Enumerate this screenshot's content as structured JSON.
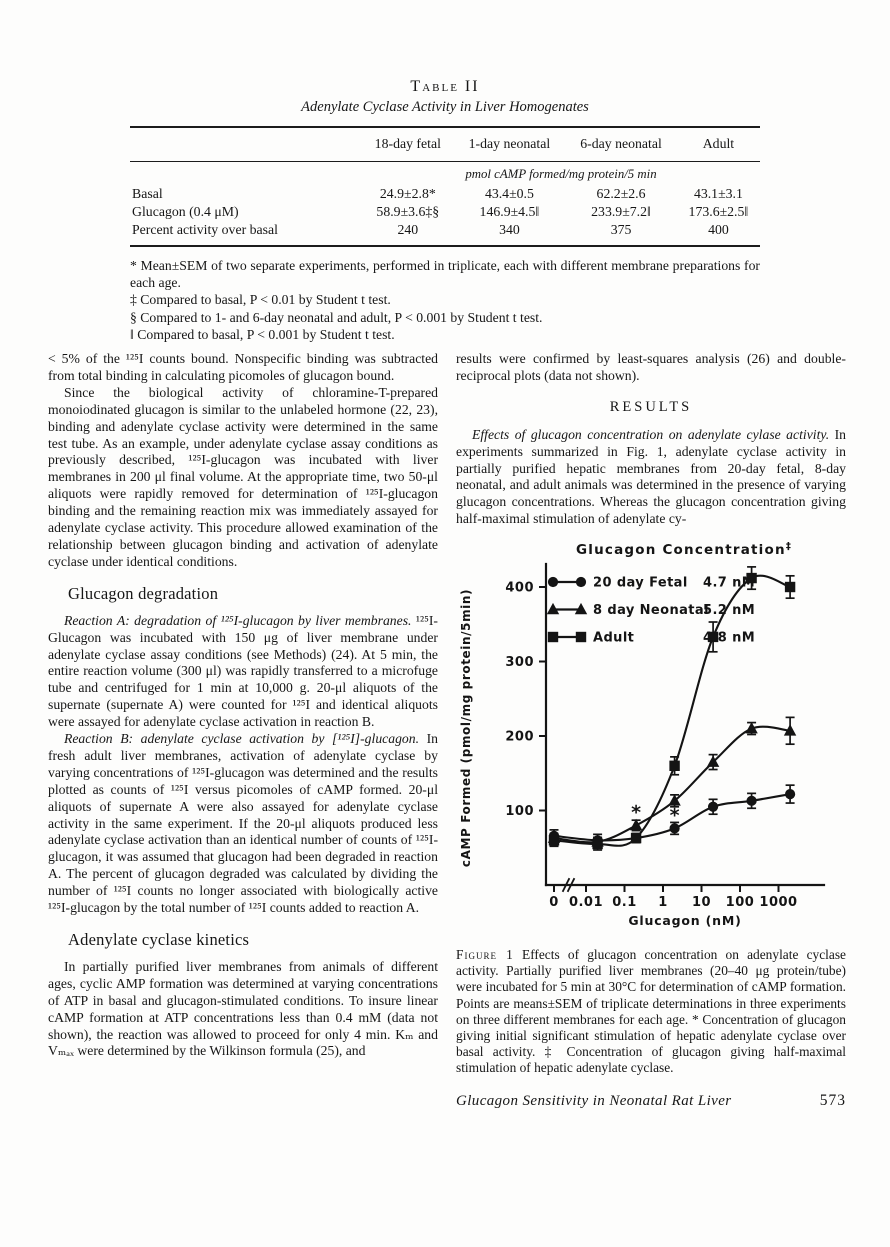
{
  "table": {
    "label": "Table II",
    "subtitle": "Adenylate Cyclase Activity in Liver Homogenates",
    "columns": [
      "",
      "18-day fetal",
      "1-day neonatal",
      "6-day neonatal",
      "Adult"
    ],
    "units_note": "pmol cAMP formed/mg protein/5 min",
    "rows": [
      {
        "label": "Basal",
        "values": [
          "24.9±2.8*",
          "43.4±0.5",
          "62.2±2.6",
          "43.1±3.1"
        ]
      },
      {
        "label": "Glucagon (0.4 μM)",
        "values": [
          "58.9±3.6‡§",
          "146.9±4.5‖",
          "233.9±7.2‖",
          "173.6±2.5‖"
        ]
      },
      {
        "label": "Percent activity over basal",
        "values": [
          "240",
          "340",
          "375",
          "400"
        ]
      }
    ],
    "footnotes": [
      "* Mean±SEM of two separate experiments, performed in triplicate, each with different membrane preparations for each age.",
      "‡ Compared to basal, P < 0.01 by Student t test.",
      "§ Compared to 1- and 6-day neonatal and adult, P < 0.001 by Student t test.",
      "‖ Compared to basal, P < 0.001 by Student t test."
    ]
  },
  "left_column": {
    "p1": "< 5% of the ¹²⁵I counts bound. Nonspecific binding was subtracted from total binding in calculating picomoles of glucagon bound.",
    "p2": "Since the biological activity of chloramine-T-prepared monoiodinated glucagon is similar to the unlabeled hormone (22, 23), binding and adenylate cyclase activity were determined in the same test tube. As an example, under adenylate cyclase assay conditions as previously described, ¹²⁵I-glucagon was incubated with liver membranes in 200 μl final volume. At the appropriate time, two 50-μl aliquots were rapidly removed for determination of ¹²⁵I-glucagon binding and the remaining reaction mix was immediately assayed for adenylate cyclase activity. This procedure allowed examination of the relationship between glucagon binding and activation of adenylate cyclase under identical conditions.",
    "h1": "Glucagon degradation",
    "p3_lead": "Reaction A: degradation of ¹²⁵I-glucagon by liver membranes.",
    "p3_text": " ¹²⁵I-Glucagon was incubated with 150 μg of liver membrane under adenylate cyclase assay conditions (see Methods) (24). At 5 min, the entire reaction volume (300 μl) was rapidly transferred to a microfuge tube and centrifuged for 1 min at 10,000 g. 20-μl aliquots of the supernate (supernate A) were counted for ¹²⁵I and identical aliquots were assayed for adenylate cyclase activation in reaction B.",
    "p4_lead": "Reaction B: adenylate cyclase activation by [¹²⁵I]-glucagon.",
    "p4_text": " In fresh adult liver membranes, activation of adenylate cyclase by varying concentrations of ¹²⁵I-glucagon was determined and the results plotted as counts of ¹²⁵I versus picomoles of cAMP formed. 20-μl aliquots of supernate A were also assayed for adenylate cyclase activity in the same experiment. If the 20-μl aliquots produced less adenylate cyclase activation than an identical number of counts of ¹²⁵I-glucagon, it was assumed that glucagon had been degraded in reaction A. The percent of glucagon degraded was calculated by dividing the number of ¹²⁵I counts no longer associated with biologically active ¹²⁵I-glucagon by the total number of ¹²⁵I counts added to reaction A.",
    "h2": "Adenylate cyclase kinetics",
    "p5": "In partially purified liver membranes from animals of different ages, cyclic AMP formation was determined at varying concentrations of ATP in basal and glucagon-stimulated conditions. To insure linear cAMP formation at ATP concentrations less than 0.4 mM (data not shown), the reaction was allowed to proceed for only 4 min. Kₘ and Vₘₐₓ were determined by the Wilkinson formula (25), and"
  },
  "right_column": {
    "p1": "results were confirmed by least-squares analysis (26) and double-reciprocal plots (data not shown).",
    "results_heading": "RESULTS",
    "p2_lead": "Effects of glucagon concentration on adenylate cylase activity.",
    "p2_text": " In experiments summarized in Fig. 1, adenylate cyclase activity in partially purified hepatic membranes from 20-day fetal, 8-day neonatal, and adult animals was determined in the presence of varying glucagon concentrations. Whereas the glucagon concentration giving half-maximal stimulation of adenylate cy-",
    "caption_label": "Figure 1",
    "caption_text": "  Effects of glucagon concentration on adenylate cyclase activity. Partially purified liver membranes (20–40 μg protein/tube) were incubated for 5 min at 30°C for determination of cAMP formation. Points are means±SEM of triplicate determinations in three experiments on three different membranes for each age. * Concentration of glucagon giving initial significant stimulation of hepatic adenylate cyclase over basal activity. ‡ Concentration of glucagon giving half-maximal stimulation of hepatic adenylate cyclase.",
    "footer_title": "Glucagon Sensitivity in Neonatal Rat Liver",
    "footer_page": "573"
  },
  "chart_data": {
    "type": "line",
    "title": "Glucagon Concentration",
    "title_mark": "‡",
    "xlabel": "Glucagon (nM)",
    "ylabel": "cAMP Formed  (pmol/mg protein/5min)",
    "x_scale": "log with zero break",
    "x_ticks": [
      "0",
      "0.01",
      "0.1",
      "1",
      "10",
      "100",
      "1000"
    ],
    "y_ticks": [
      100,
      200,
      300,
      400
    ],
    "ylim": [
      0,
      430
    ],
    "x": [
      0,
      0.02,
      0.2,
      2,
      20,
      200,
      2000
    ],
    "series": [
      {
        "name": "20 day Fetal",
        "half_max": "4.7 nM",
        "marker": "circle",
        "values": [
          66,
          60,
          63,
          76,
          105,
          113,
          122
        ],
        "sem": [
          8,
          8,
          6,
          8,
          10,
          10,
          12
        ]
      },
      {
        "name": "8 day Neonatal",
        "half_max": "5.2 nM",
        "marker": "triangle",
        "values": [
          63,
          58,
          80,
          113,
          165,
          210,
          207
        ],
        "sem": [
          6,
          6,
          7,
          8,
          10,
          8,
          18
        ]
      },
      {
        "name": "Adult",
        "half_max": "4.8 nM",
        "marker": "square",
        "values": [
          60,
          55,
          63,
          160,
          333,
          412,
          400
        ],
        "sem": [
          8,
          8,
          6,
          12,
          20,
          15,
          15
        ]
      }
    ],
    "annotations": [
      {
        "symbol": "*",
        "x": 0.2,
        "y": 97
      },
      {
        "symbol": "*",
        "x": 2,
        "y": 93
      }
    ],
    "legend_position": "top-left inside"
  }
}
